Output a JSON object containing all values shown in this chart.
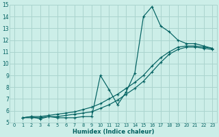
{
  "xlabel": "Humidex (Indice chaleur)",
  "bg_color": "#cceee8",
  "grid_color": "#aad4ce",
  "line_color": "#006060",
  "xlim": [
    -0.5,
    23.5
  ],
  "ylim": [
    5,
    15
  ],
  "xticks": [
    0,
    1,
    2,
    3,
    4,
    5,
    6,
    7,
    8,
    9,
    10,
    11,
    12,
    13,
    14,
    15,
    16,
    17,
    18,
    19,
    20,
    21,
    22,
    23
  ],
  "yticks": [
    5,
    6,
    7,
    8,
    9,
    10,
    11,
    12,
    13,
    14,
    15
  ],
  "line1_x": [
    1,
    2,
    3,
    4,
    5,
    6,
    7,
    8,
    9,
    10,
    11,
    12,
    13,
    14,
    15,
    16,
    17,
    18,
    19,
    20,
    21,
    22,
    23
  ],
  "line1_y": [
    5.4,
    5.5,
    5.3,
    5.5,
    5.4,
    5.4,
    5.4,
    5.5,
    5.5,
    9.0,
    7.8,
    6.5,
    7.6,
    9.2,
    14.0,
    14.85,
    13.2,
    12.7,
    12.0,
    11.7,
    11.7,
    11.5,
    11.3
  ],
  "line2_x": [
    1,
    2,
    3,
    4,
    5,
    6,
    7,
    8,
    9,
    10,
    11,
    12,
    13,
    14,
    15,
    16,
    17,
    18,
    19,
    20,
    21,
    22,
    23
  ],
  "line2_y": [
    5.4,
    5.5,
    5.5,
    5.6,
    5.7,
    5.8,
    5.9,
    6.1,
    6.3,
    6.6,
    7.0,
    7.4,
    7.9,
    8.4,
    9.0,
    9.8,
    10.5,
    11.0,
    11.4,
    11.5,
    11.5,
    11.4,
    11.3
  ],
  "line3_x": [
    1,
    2,
    3,
    4,
    5,
    6,
    7,
    8,
    9,
    10,
    11,
    12,
    13,
    14,
    15,
    16,
    17,
    18,
    19,
    20,
    21,
    22,
    23
  ],
  "line3_y": [
    5.4,
    5.4,
    5.4,
    5.5,
    5.5,
    5.6,
    5.7,
    5.8,
    5.9,
    6.2,
    6.5,
    6.9,
    7.4,
    7.9,
    8.5,
    9.3,
    10.1,
    10.8,
    11.2,
    11.4,
    11.4,
    11.3,
    11.2
  ]
}
